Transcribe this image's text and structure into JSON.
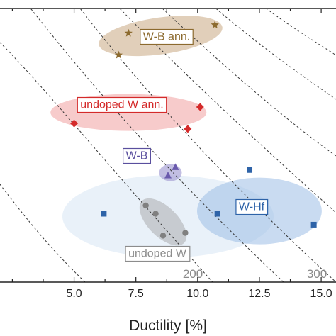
{
  "chart_data": {
    "type": "scatter",
    "title": "",
    "xlabel": "Ductility [%]",
    "ylabel": "",
    "xlim": [
      2.0,
      15.6
    ],
    "ylim": [
      0,
      100
    ],
    "x_ticks": [
      5.0,
      7.5,
      10.0,
      12.5,
      15.0
    ],
    "x_tick_labels": [
      "5.0",
      "7.5",
      "10.0",
      "12.5",
      "15.0"
    ],
    "grid": false,
    "contour_labels": [
      "200",
      "300"
    ],
    "series": [
      {
        "name": "W-B ann.",
        "marker": "star",
        "color": "#8c6a2e",
        "fill": "#c9a882",
        "label_color": "#8c6a2e",
        "points": [
          [
            7.2,
            91
          ],
          [
            6.8,
            83
          ],
          [
            10.7,
            94
          ]
        ]
      },
      {
        "name": "undoped W ann.",
        "marker": "diamond",
        "color": "#d42a2a",
        "fill": "#ee8b8b",
        "label_color": "#d42a2a",
        "points": [
          [
            5.0,
            58
          ],
          [
            10.1,
            64
          ],
          [
            9.6,
            56
          ]
        ]
      },
      {
        "name": "W-B",
        "marker": "triangle",
        "color": "#6a5aad",
        "fill": "#a8a3d6",
        "label_color": "#5a4f9e",
        "points": [
          [
            9.1,
            42
          ],
          [
            8.8,
            39
          ]
        ]
      },
      {
        "name": "W-Hf",
        "marker": "square",
        "color": "#2e63a8",
        "fill": "#9dbde6",
        "label_color": "#2e63a8",
        "points": [
          [
            12.1,
            41
          ],
          [
            6.2,
            25
          ],
          [
            10.8,
            25
          ],
          [
            14.7,
            21
          ]
        ]
      },
      {
        "name": "undoped W",
        "marker": "circle",
        "color": "#808080",
        "fill": "#a9a9a9",
        "label_color": "#8c8c8c",
        "points": [
          [
            7.9,
            28
          ],
          [
            8.3,
            25
          ],
          [
            8.6,
            17
          ],
          [
            9.5,
            18
          ]
        ]
      }
    ]
  }
}
